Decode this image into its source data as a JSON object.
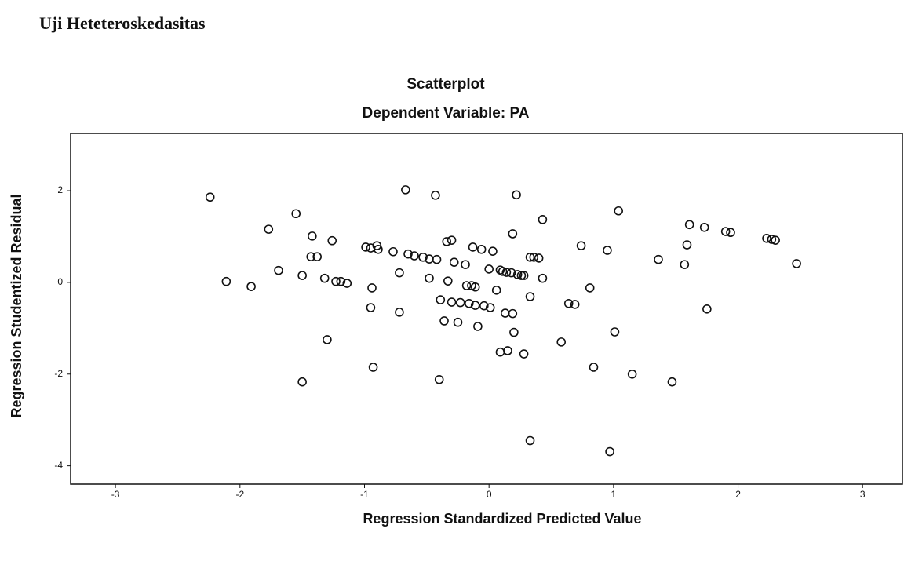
{
  "heading": "Uji Heteteroskedasitas",
  "chart_data": {
    "type": "scatter",
    "title": "Scatterplot",
    "subtitle": "Dependent Variable: PA",
    "x_label": "Regression Standardized Predicted Value",
    "y_label": "Regression Studentized Residual",
    "xlim": [
      -3.36,
      3.32
    ],
    "ylim": [
      -4.4,
      3.25
    ],
    "xticks": [
      -3,
      -2,
      -1,
      0,
      1,
      2,
      3
    ],
    "yticks": [
      2,
      0,
      -2,
      -4
    ],
    "color": "#111111",
    "x": [
      -2.24,
      -2.11,
      -1.91,
      -1.77,
      -1.69,
      -1.55,
      -1.5,
      -1.5,
      -1.42,
      -1.43,
      -1.38,
      -1.32,
      -1.3,
      -1.26,
      -1.23,
      -1.19,
      -1.14,
      -0.99,
      -0.95,
      -0.94,
      -0.95,
      -0.93,
      -0.9,
      -0.89,
      -0.77,
      -0.72,
      -0.72,
      -0.67,
      -0.65,
      -0.6,
      -0.53,
      -0.48,
      -0.48,
      -0.43,
      -0.42,
      -0.4,
      -0.39,
      -0.36,
      -0.34,
      -0.33,
      -0.3,
      -0.3,
      -0.28,
      -0.25,
      -0.23,
      -0.19,
      -0.18,
      -0.16,
      -0.14,
      -0.13,
      -0.11,
      -0.11,
      -0.09,
      -0.06,
      -0.04,
      0,
      0.01,
      0.03,
      0.06,
      0.09,
      0.09,
      0.11,
      0.13,
      0.14,
      0.15,
      0.18,
      0.19,
      0.19,
      0.2,
      0.22,
      0.23,
      0.26,
      0.28,
      0.28,
      0.33,
      0.33,
      0.33,
      0.36,
      0.4,
      0.43,
      0.43,
      0.58,
      0.64,
      0.69,
      0.74,
      0.81,
      0.84,
      0.95,
      0.97,
      1.01,
      1.04,
      1.15,
      1.36,
      1.47,
      1.57,
      1.59,
      1.61,
      1.73,
      1.75,
      1.9,
      1.94,
      2.23,
      2.27,
      2.3,
      2.47
    ],
    "y": [
      1.86,
      0.02,
      -0.09,
      1.16,
      0.26,
      1.5,
      0.15,
      -2.17,
      1.01,
      0.56,
      0.56,
      0.09,
      -1.25,
      0.91,
      0.02,
      0.02,
      -0.02,
      0.77,
      0.75,
      -0.12,
      -0.55,
      -1.85,
      0.8,
      0.72,
      0.67,
      0.21,
      -0.65,
      2.02,
      0.62,
      0.58,
      0.55,
      0.51,
      0.09,
      1.9,
      0.5,
      -2.12,
      -0.38,
      -0.84,
      0.89,
      0.03,
      0.92,
      -0.43,
      0.44,
      -0.87,
      -0.44,
      0.39,
      -0.07,
      -0.46,
      -0.07,
      0.77,
      -0.1,
      -0.5,
      -0.96,
      0.72,
      -0.51,
      0.29,
      -0.55,
      0.68,
      -0.17,
      0.27,
      -1.52,
      0.24,
      -0.67,
      0.22,
      -1.49,
      0.21,
      1.06,
      -0.68,
      -1.09,
      1.91,
      0.17,
      0.15,
      0.15,
      -1.56,
      0.55,
      -0.31,
      -3.45,
      0.55,
      0.53,
      0.09,
      1.37,
      -1.3,
      -0.46,
      -0.48,
      0.8,
      -0.12,
      -1.85,
      0.7,
      -3.69,
      -1.08,
      1.56,
      -2.0,
      0.5,
      -2.17,
      0.39,
      0.82,
      1.26,
      1.2,
      -0.58,
      1.11,
      1.09,
      0.96,
      0.94,
      0.92,
      0.41
    ]
  }
}
